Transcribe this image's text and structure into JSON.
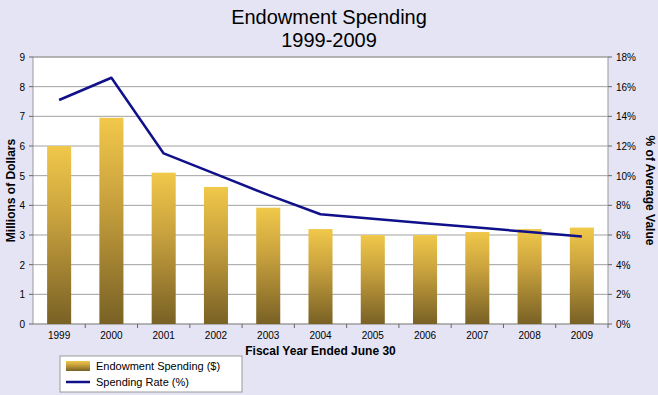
{
  "chart_data": {
    "type": "bar",
    "title": "Endowment Spending",
    "subtitle": "1999-2009",
    "x_label": "Fiscal Year Ended June 30",
    "y_label": "Millions of Dollars",
    "y2_label": "% of Average Value",
    "categories": [
      "1999",
      "2000",
      "2001",
      "2002",
      "2003",
      "2004",
      "2005",
      "2006",
      "2007",
      "2008",
      "2009"
    ],
    "series": [
      {
        "name": "Endowment Spending ($)",
        "type": "bar",
        "color": "#c9a23e",
        "values": [
          6.0,
          6.95,
          5.1,
          4.62,
          3.92,
          3.2,
          3.0,
          3.0,
          3.1,
          3.2,
          3.25
        ]
      },
      {
        "name": "Spending Rate (%)",
        "type": "line",
        "axis": "y2",
        "color": "#10108a",
        "values": [
          15.1,
          16.6,
          11.5,
          10.1,
          8.7,
          7.4,
          7.1,
          6.8,
          6.5,
          6.2,
          5.9
        ]
      }
    ],
    "ylim": [
      0,
      9
    ],
    "yticks": [
      0,
      1,
      2,
      3,
      4,
      5,
      6,
      7,
      8,
      9
    ],
    "y2lim": [
      0,
      18
    ],
    "y2ticks": [
      {
        "value": 0,
        "label": "0%"
      },
      {
        "value": 2,
        "label": "2%"
      },
      {
        "value": 4,
        "label": "4%"
      },
      {
        "value": 6,
        "label": "6%"
      },
      {
        "value": 8,
        "label": "8%"
      },
      {
        "value": 10,
        "label": "10%"
      },
      {
        "value": 12,
        "label": "12%"
      },
      {
        "value": 14,
        "label": "14%"
      },
      {
        "value": 16,
        "label": "16%"
      },
      {
        "value": 18,
        "label": "18%"
      }
    ],
    "grid": true,
    "legend": "bottom-left"
  }
}
